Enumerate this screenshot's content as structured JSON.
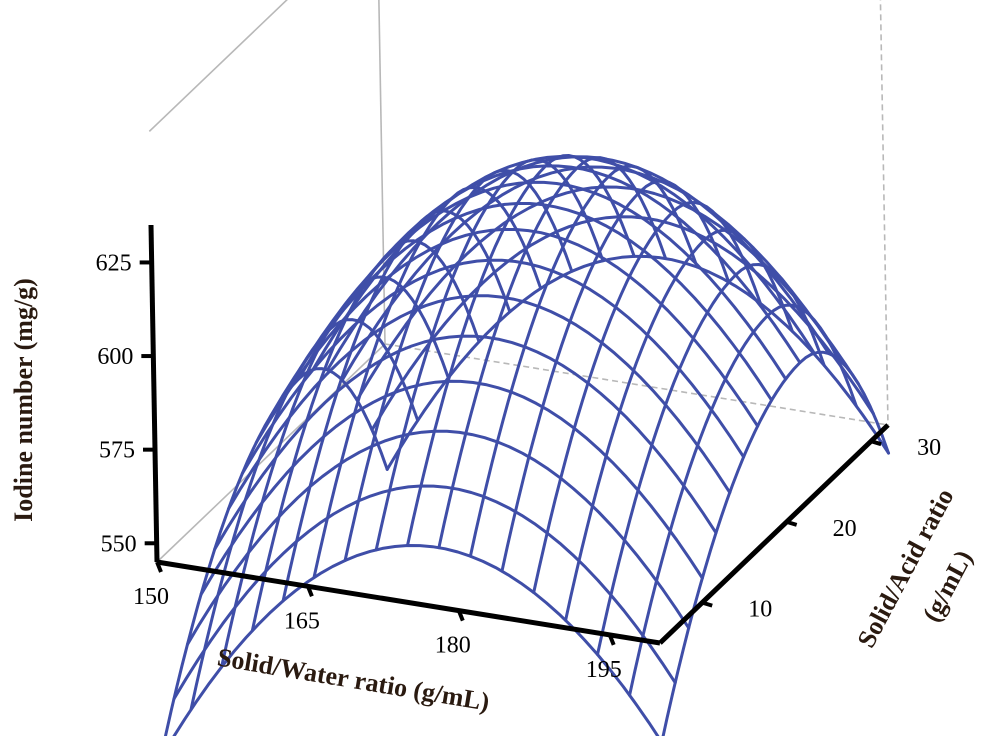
{
  "chart_data": {
    "type": "surface",
    "xlabel": "Solid/Water ratio (g/mL)",
    "ylabel": "Solid/Acid ratio",
    "ylabel_unit": "(g/mL)",
    "zlabel": "Iodine number (mg/g)",
    "x_ticks": [
      "150",
      "165",
      "180",
      "195"
    ],
    "y_ticks": [
      "10",
      "20",
      "30"
    ],
    "z_ticks": [
      "550",
      "575",
      "600",
      "625"
    ],
    "xlim": [
      150,
      200
    ],
    "ylim": [
      5,
      32
    ],
    "zlim": [
      545,
      635
    ],
    "peak": {
      "x": 178,
      "y": 22,
      "z": 626
    },
    "corners": [
      {
        "x": 150,
        "y": 5,
        "z": 555
      },
      {
        "x": 200,
        "y": 5,
        "z": 567
      },
      {
        "x": 150,
        "y": 32,
        "z": 560
      },
      {
        "x": 200,
        "y": 32,
        "z": 600
      }
    ],
    "mesh_color": "#3f4ea8",
    "grid": false
  }
}
